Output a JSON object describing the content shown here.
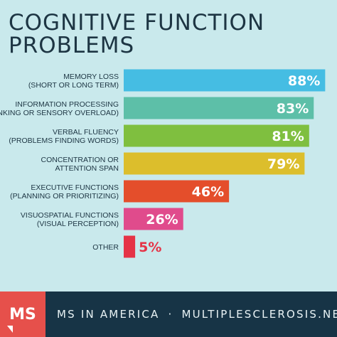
{
  "title": "COGNITIVE FUNCTION PROBLEMS",
  "chart_data": {
    "type": "bar",
    "orientation": "horizontal",
    "title": "COGNITIVE FUNCTION PROBLEMS",
    "unit": "%",
    "xlim": [
      0,
      100
    ],
    "grid": false,
    "legend": "none",
    "categories": [
      [
        "MEMORY LOSS",
        "(SHORT OR LONG TERM)"
      ],
      [
        "INFORMATION PROCESSING",
        "(SLOW THINKING OR SENSORY OVERLOAD)"
      ],
      [
        "VERBAL FLUENCY",
        "(PROBLEMS FINDING WORDS)"
      ],
      [
        "CONCENTRATION OR",
        "ATTENTION SPAN"
      ],
      [
        "EXECUTIVE FUNCTIONS",
        "(PLANNING OR PRIORITIZING)"
      ],
      [
        "VISUOSPATIAL FUNCTIONS",
        "(VISUAL PERCEPTION)"
      ],
      [
        "OTHER"
      ]
    ],
    "values": [
      88,
      83,
      81,
      79,
      46,
      26,
      5
    ],
    "value_labels": [
      "88%",
      "83%",
      "81%",
      "79%",
      "46%",
      "26%",
      "5%"
    ],
    "colors": [
      "#45bde3",
      "#5dbfa8",
      "#7fbf3f",
      "#dcbe2c",
      "#e44e2b",
      "#e04b8c",
      "#e53346"
    ]
  },
  "footer": {
    "logo": "MS",
    "site_name": "MS IN AMERICA",
    "separator": "·",
    "site_url": "MULTIPLESCLEROSIS.NET",
    "background": "#173446",
    "logo_color": "#e6504b"
  }
}
